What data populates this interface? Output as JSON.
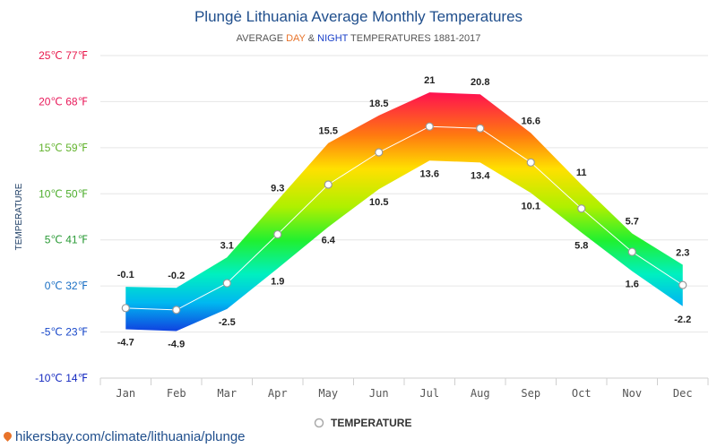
{
  "chart_data": {
    "type": "area",
    "title": "Plungė Lithuania Average Monthly Temperatures",
    "subtitle": {
      "prefix": "AVERAGE ",
      "day": "DAY",
      "amp": " & ",
      "night": "NIGHT",
      "suffix": " TEMPERATURES 1881-2017"
    },
    "ylabel": "TEMPERATURE",
    "categories": [
      "Jan",
      "Feb",
      "Mar",
      "Apr",
      "May",
      "Jun",
      "Jul",
      "Aug",
      "Sep",
      "Oct",
      "Nov",
      "Dec"
    ],
    "day": [
      -0.1,
      -0.2,
      3.1,
      9.3,
      15.5,
      18.5,
      21,
      20.8,
      16.6,
      11,
      5.7,
      2.3
    ],
    "night": [
      -4.7,
      -4.9,
      -2.5,
      1.9,
      6.4,
      10.5,
      13.6,
      13.4,
      10.1,
      5.8,
      1.6,
      -2.2
    ],
    "average": [
      -2.4,
      -2.6,
      0.3,
      5.6,
      11,
      14.5,
      17.3,
      17.1,
      13.4,
      8.4,
      3.7,
      0.1
    ],
    "ylim": [
      -10,
      25
    ],
    "yticks": [
      {
        "value": 25,
        "label": "25℃ 77℉",
        "color": "#e8194c"
      },
      {
        "value": 20,
        "label": "20℃ 68℉",
        "color": "#e8195a"
      },
      {
        "value": 15,
        "label": "15℃ 59℉",
        "color": "#63b32e"
      },
      {
        "value": 10,
        "label": "10℃ 50℉",
        "color": "#4cad2c"
      },
      {
        "value": 5,
        "label": "5℃ 41℉",
        "color": "#2a9a36"
      },
      {
        "value": 0,
        "label": "0℃ 32℉",
        "color": "#1a6fc4"
      },
      {
        "value": -5,
        "label": "-5℃ 23℉",
        "color": "#1747c9"
      },
      {
        "value": -10,
        "label": "-10℃ 14℉",
        "color": "#1429c0"
      }
    ],
    "legend": {
      "label": "TEMPERATURE",
      "position": "bottom"
    },
    "grid": true
  },
  "colors": {
    "day": "#e8732a",
    "night": "#1a40c8",
    "title": "#1f4e8c"
  },
  "source": "hikersbay.com/climate/lithuania/plunge"
}
